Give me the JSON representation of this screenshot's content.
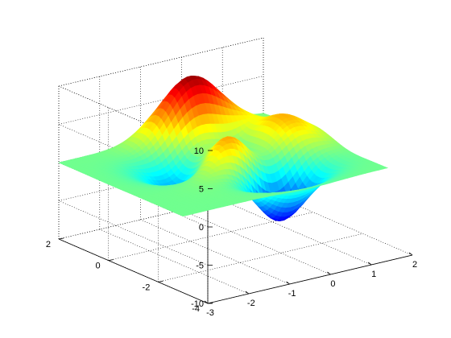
{
  "chart_data": {
    "type": "surface",
    "title": "",
    "xlabel": "",
    "ylabel": "",
    "zlabel": "",
    "x_range": [
      -3,
      2
    ],
    "y_range": [
      -4,
      2
    ],
    "z_range": [
      -10,
      10
    ],
    "x_ticks": [
      -3,
      -2,
      -1,
      0,
      1,
      2
    ],
    "y_ticks": [
      -4,
      -2,
      0,
      2
    ],
    "z_ticks": [
      -10,
      -5,
      0,
      5,
      10
    ],
    "x_tick_labels": [
      "-3",
      "-2",
      "-1",
      "0",
      "1",
      "2"
    ],
    "y_tick_labels": [
      "-4",
      "-2",
      "0",
      "2"
    ],
    "z_tick_labels": [
      "-10",
      "-5",
      "0",
      "5",
      "10"
    ],
    "grid": true,
    "surface": {
      "domain_x": [
        -3,
        2
      ],
      "domain_y": [
        -3,
        2
      ],
      "shading": "interp",
      "colormap": "jet",
      "description_of_shape": "four-peak surface with a central trough; height roughly -8 to +9"
    },
    "colors": {
      "background": "#ffffff",
      "axis_line": "#000000",
      "colormap_low": "#00ffff",
      "colormap_mid": "#80ff80",
      "colormap_high": "#cc0000"
    }
  }
}
